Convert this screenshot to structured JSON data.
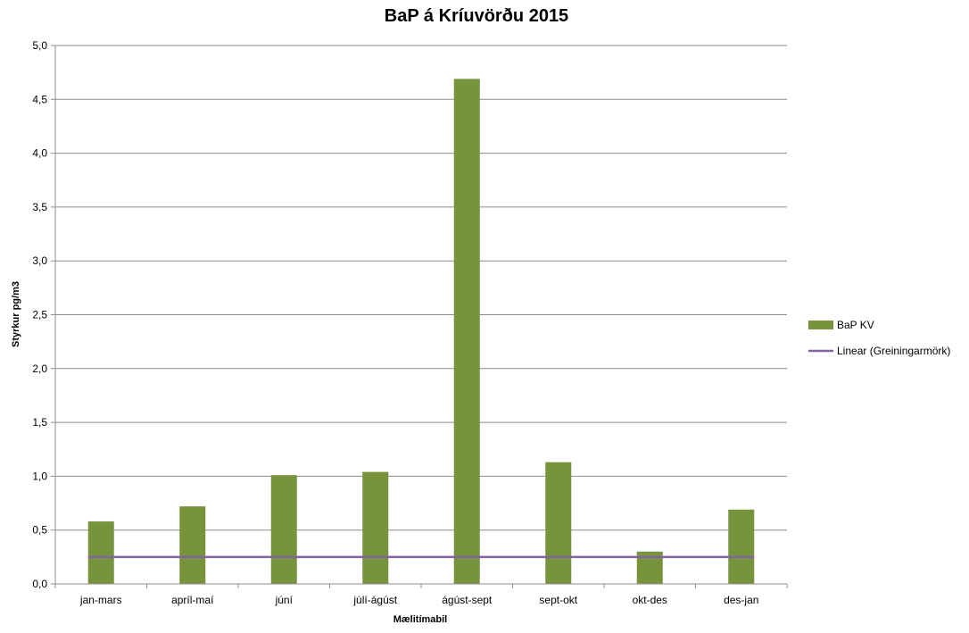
{
  "chart_data": {
    "type": "bar",
    "title": "BaP á Kríuvörðu 2015",
    "xlabel": "Mælitímabil",
    "ylabel": "Styrkur pg/m3",
    "ylim": [
      0,
      5
    ],
    "ytick_step": 0.5,
    "ytick_labels": [
      "0,0",
      "0,5",
      "1,0",
      "1,5",
      "2,0",
      "2,5",
      "3,0",
      "3,5",
      "4,0",
      "4,5",
      "5,0"
    ],
    "grid": true,
    "legend_position": "right",
    "categories": [
      "jan-mars",
      "apríl-maí",
      "júní",
      "júlí-ágúst",
      "ágúst-sept",
      "sept-okt",
      "okt-des",
      "des-jan"
    ],
    "series": [
      {
        "name": "BaP KV",
        "type": "bar",
        "color": "#77933C",
        "values": [
          0.58,
          0.72,
          1.01,
          1.04,
          4.69,
          1.13,
          0.3,
          0.69
        ]
      },
      {
        "name": "Linear (Greiningarmörk)",
        "type": "line",
        "color": "#8064A2",
        "values": [
          0.25,
          0.25,
          0.25,
          0.25,
          0.25,
          0.25,
          0.25,
          0.25
        ]
      }
    ]
  }
}
